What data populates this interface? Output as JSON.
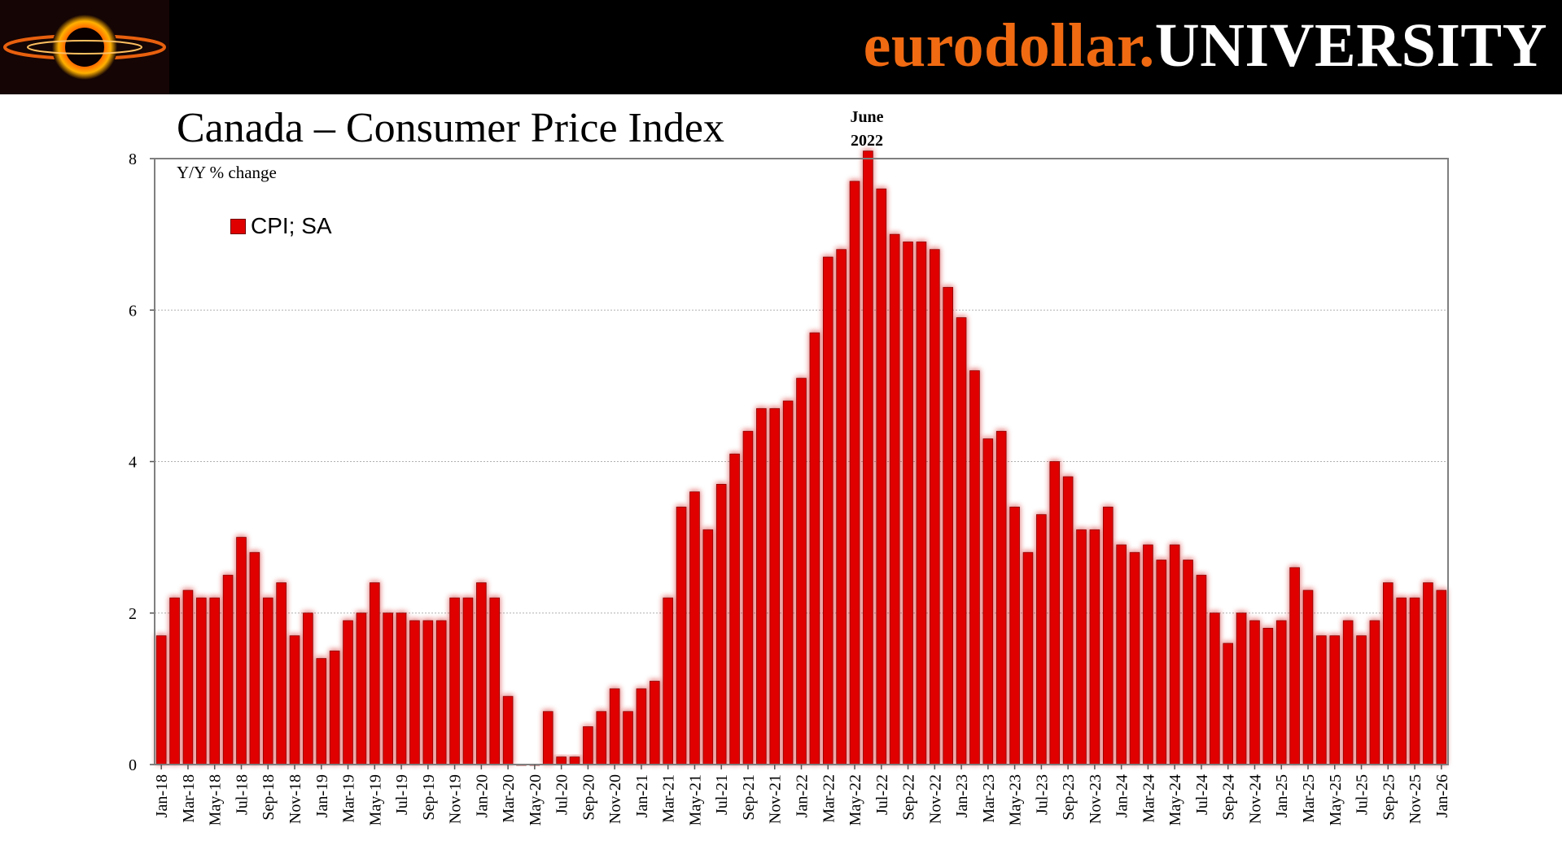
{
  "brand": {
    "part1": "eurodollar.",
    "part2": "UNIVERSITY"
  },
  "chart_data": {
    "type": "bar",
    "title": "Canada – Consumer Price Index",
    "ylabel": "Y/Y % change",
    "xlabel": "",
    "ylim": [
      0,
      8
    ],
    "yticks": [
      0,
      2,
      4,
      6,
      8
    ],
    "grid": true,
    "legend": "top-left",
    "annotation": {
      "lines": [
        "June",
        "2022"
      ],
      "category": "Jun-22"
    },
    "xtick_labels": [
      "Jan-18",
      "Mar-18",
      "May-18",
      "Jul-18",
      "Sep-18",
      "Nov-18",
      "Jan-19",
      "Mar-19",
      "May-19",
      "Jul-19",
      "Sep-19",
      "Nov-19",
      "Jan-20",
      "Mar-20",
      "May-20",
      "Jul-20",
      "Sep-20",
      "Nov-20",
      "Jan-21",
      "Mar-21",
      "May-21",
      "Jul-21",
      "Sep-21",
      "Nov-21",
      "Jan-22",
      "Mar-22",
      "May-22",
      "Jul-22",
      "Sep-22",
      "Nov-22",
      "Jan-23",
      "Mar-23",
      "May-23",
      "Jul-23",
      "Sep-23",
      "Nov-23",
      "Jan-24",
      "Mar-24",
      "May-24",
      "Jul-24",
      "Sep-24",
      "Nov-24",
      "Jan-25",
      "Mar-25",
      "May-25",
      "Jul-25",
      "Sep-25",
      "Nov-25",
      "Jan-26"
    ],
    "series": [
      {
        "name": "CPI; SA",
        "color": "#e00000",
        "values": [
          1.7,
          2.2,
          2.3,
          2.2,
          2.2,
          2.5,
          3.0,
          2.8,
          2.2,
          2.4,
          1.7,
          2.0,
          1.4,
          1.5,
          1.9,
          2.0,
          2.4,
          2.0,
          2.0,
          1.9,
          1.9,
          1.9,
          2.2,
          2.2,
          2.4,
          2.2,
          0.9,
          0.0,
          0.0,
          0.7,
          0.1,
          0.1,
          0.5,
          0.7,
          1.0,
          0.7,
          1.0,
          1.1,
          2.2,
          3.4,
          3.6,
          3.1,
          3.7,
          4.1,
          4.4,
          4.7,
          4.7,
          4.8,
          5.1,
          5.7,
          6.7,
          6.8,
          7.7,
          8.1,
          7.6,
          7.0,
          6.9,
          6.9,
          6.8,
          6.3,
          5.9,
          5.2,
          4.3,
          4.4,
          3.4,
          2.8,
          3.3,
          4.0,
          3.8,
          3.1,
          3.1,
          3.4,
          2.9,
          2.8,
          2.9,
          2.7,
          2.9,
          2.7,
          2.5,
          2.0,
          1.6,
          2.0,
          1.9,
          1.8,
          1.9,
          2.6,
          2.3,
          1.7,
          1.7,
          1.9,
          1.7,
          1.9,
          2.4,
          2.2,
          2.2,
          2.4,
          2.3
        ]
      }
    ]
  }
}
